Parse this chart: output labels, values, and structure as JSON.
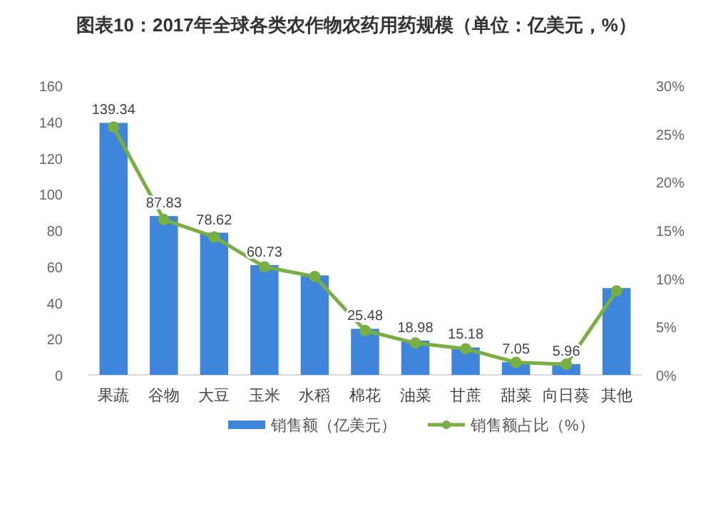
{
  "chart_data": {
    "type": "bar",
    "title": "图表10：2017年全球各类农作物农药用药规模（单位：亿美元，%）",
    "categories": [
      "果蔬",
      "谷物",
      "大豆",
      "玉米",
      "水稻",
      "棉花",
      "油菜",
      "甘蔗",
      "甜菜",
      "向日葵",
      "其他"
    ],
    "series": [
      {
        "name": "销售额（亿美元）",
        "color": "#3f85dc",
        "values": [
          139.34,
          87.83,
          78.62,
          60.73,
          55,
          25.48,
          18.98,
          15.18,
          7.05,
          5.96,
          48
        ],
        "value_labels": [
          "139.34",
          "87.83",
          "78.62",
          "60.73",
          null,
          "25.48",
          "18.98",
          "15.18",
          "7.05",
          "5.96",
          null
        ]
      },
      {
        "name": "销售额占比（%）",
        "type": "line",
        "axis": "y2",
        "color": "#77b041",
        "values": [
          25.7,
          16.1,
          14.3,
          11.2,
          10.2,
          4.6,
          3.3,
          2.7,
          1.3,
          1.1,
          8.7
        ]
      }
    ],
    "ylim": [
      0,
      160
    ],
    "yticks": [
      0,
      20,
      40,
      60,
      80,
      100,
      120,
      140,
      160
    ],
    "y2lim": [
      0,
      30
    ],
    "y2ticks": [
      {
        "value": 0,
        "label": "0%"
      },
      {
        "value": 5,
        "label": "5%"
      },
      {
        "value": 10,
        "label": "10%"
      },
      {
        "value": 15,
        "label": "15%"
      },
      {
        "value": 20,
        "label": "20%"
      },
      {
        "value": 25,
        "label": "25%"
      },
      {
        "value": 30,
        "label": "30%"
      }
    ],
    "marker": "circle",
    "legend": "bottom",
    "grid": false
  }
}
